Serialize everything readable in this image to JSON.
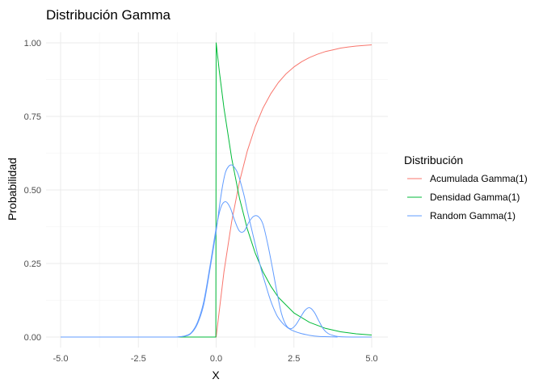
{
  "chart_data": {
    "type": "line",
    "title": "Distribución Gamma",
    "xlabel": "X",
    "ylabel": "Probabilidad",
    "xlim": [
      -5,
      5
    ],
    "ylim": [
      0,
      1
    ],
    "x_ticks": [
      -5.0,
      -2.5,
      0.0,
      2.5,
      5.0
    ],
    "x_tick_labels": [
      "-5.0",
      "-2.5",
      "0.0",
      "2.5",
      "5.0"
    ],
    "y_ticks": [
      0,
      0.25,
      0.5,
      0.75,
      1.0
    ],
    "y_tick_labels": [
      "0.00",
      "0.25",
      "0.50",
      "0.75",
      "1.00"
    ],
    "grid": true,
    "legend": {
      "title": "Distribución",
      "position": "right"
    },
    "series": [
      {
        "name": "Acumulada Gamma(1)",
        "color": "#F8766D",
        "x": [
          -5,
          -4,
          -3,
          -2,
          -1,
          0,
          0.25,
          0.5,
          0.75,
          1,
          1.25,
          1.5,
          1.75,
          2,
          2.25,
          2.5,
          2.75,
          3,
          3.25,
          3.5,
          3.75,
          4,
          4.25,
          4.5,
          4.75,
          5
        ],
        "y": [
          0,
          0,
          0,
          0,
          0,
          0,
          0.221,
          0.393,
          0.528,
          0.632,
          0.713,
          0.777,
          0.826,
          0.865,
          0.895,
          0.918,
          0.936,
          0.95,
          0.961,
          0.97,
          0.976,
          0.982,
          0.986,
          0.989,
          0.991,
          0.993
        ]
      },
      {
        "name": "Densidad Gamma(1)",
        "color": "#00BA38",
        "x": [
          -5,
          -4,
          -3,
          -2,
          -1,
          -0.01,
          0,
          0.1,
          0.25,
          0.5,
          0.75,
          1,
          1.25,
          1.5,
          1.75,
          2,
          2.5,
          3,
          3.5,
          4,
          4.5,
          5
        ],
        "y": [
          0,
          0,
          0,
          0,
          0,
          0,
          1,
          0.905,
          0.779,
          0.607,
          0.472,
          0.368,
          0.287,
          0.223,
          0.174,
          0.135,
          0.082,
          0.05,
          0.03,
          0.018,
          0.011,
          0.007
        ]
      },
      {
        "name": "Random Gamma(1)",
        "color": "#619CFF",
        "bands": [
          {
            "x": [
              -5,
              -4,
              -3,
              -2,
              -1.3,
              -1.2,
              -1,
              -0.8,
              -0.6,
              -0.4,
              -0.2,
              0,
              0.15,
              0.3,
              0.45,
              0.6,
              0.75,
              0.9,
              1.05,
              1.2,
              1.35,
              1.5,
              1.65,
              1.8,
              1.95,
              2.1,
              2.25,
              2.4,
              2.55,
              2.7,
              2.85,
              3,
              3.15,
              3.3,
              3.45,
              3.6,
              3.8,
              4,
              4.5,
              5
            ],
            "y": [
              0,
              0,
              0,
              0,
              0,
              0.001,
              0.004,
              0.015,
              0.05,
              0.12,
              0.24,
              0.37,
              0.44,
              0.46,
              0.44,
              0.395,
              0.36,
              0.36,
              0.39,
              0.41,
              0.41,
              0.385,
              0.32,
              0.24,
              0.155,
              0.08,
              0.04,
              0.028,
              0.04,
              0.065,
              0.09,
              0.1,
              0.085,
              0.055,
              0.027,
              0.012,
              0.004,
              0.001,
              0,
              0
            ]
          },
          {
            "x": [
              -1.3,
              -1,
              -0.8,
              -0.6,
              -0.4,
              -0.2,
              0,
              0.1,
              0.2,
              0.3,
              0.4,
              0.5,
              0.6,
              0.7,
              0.8,
              0.9,
              1,
              1.1,
              1.2,
              1.3,
              1.4,
              1.5,
              1.6,
              1.7,
              1.8,
              1.9,
              2,
              2.2,
              2.4,
              2.7,
              3,
              3.3,
              3.6,
              3.9
            ],
            "y": [
              0,
              0.003,
              0.013,
              0.045,
              0.11,
              0.23,
              0.36,
              0.44,
              0.51,
              0.56,
              0.58,
              0.585,
              0.575,
              0.555,
              0.52,
              0.48,
              0.43,
              0.385,
              0.34,
              0.295,
              0.25,
              0.21,
              0.175,
              0.14,
              0.11,
              0.085,
              0.065,
              0.04,
              0.025,
              0.013,
              0.006,
              0.002,
              0.001,
              0
            ]
          }
        ]
      }
    ]
  }
}
